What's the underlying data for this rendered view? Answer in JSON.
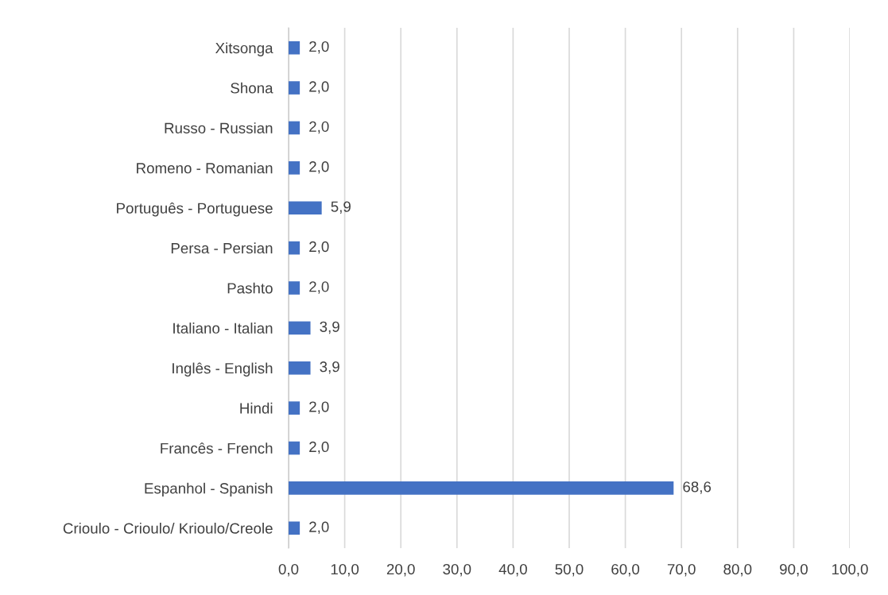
{
  "chart_data": {
    "type": "bar",
    "orientation": "horizontal",
    "categories": [
      "Xitsonga",
      "Shona",
      "Russo - Russian",
      "Romeno - Romanian",
      "Português - Portuguese",
      "Persa - Persian",
      "Pashto",
      "Italiano - Italian",
      "Inglês - English",
      "Hindi",
      "Francês - French",
      "Espanhol - Spanish",
      "Crioulo - Crioulo/ Krioulo/Creole"
    ],
    "values": [
      2.0,
      2.0,
      2.0,
      2.0,
      5.9,
      2.0,
      2.0,
      3.9,
      3.9,
      2.0,
      2.0,
      68.6,
      2.0
    ],
    "value_labels": [
      "2,0",
      "2,0",
      "2,0",
      "2,0",
      "5,9",
      "2,0",
      "2,0",
      "3,9",
      "3,9",
      "2,0",
      "2,0",
      "68,6",
      "2,0"
    ],
    "color": "#4472c4",
    "xlim": [
      0,
      100
    ],
    "xticks": [
      {
        "value": 0,
        "label": "0,0"
      },
      {
        "value": 10,
        "label": "10,0"
      },
      {
        "value": 20,
        "label": "20,0"
      },
      {
        "value": 30,
        "label": "30,0"
      },
      {
        "value": 40,
        "label": "40,0"
      },
      {
        "value": 50,
        "label": "50,0"
      },
      {
        "value": 60,
        "label": "60,0"
      },
      {
        "value": 70,
        "label": "70,0"
      },
      {
        "value": 80,
        "label": "80,0"
      },
      {
        "value": 90,
        "label": "90,0"
      },
      {
        "value": 100,
        "label": "100,0"
      }
    ],
    "grid": "x"
  }
}
